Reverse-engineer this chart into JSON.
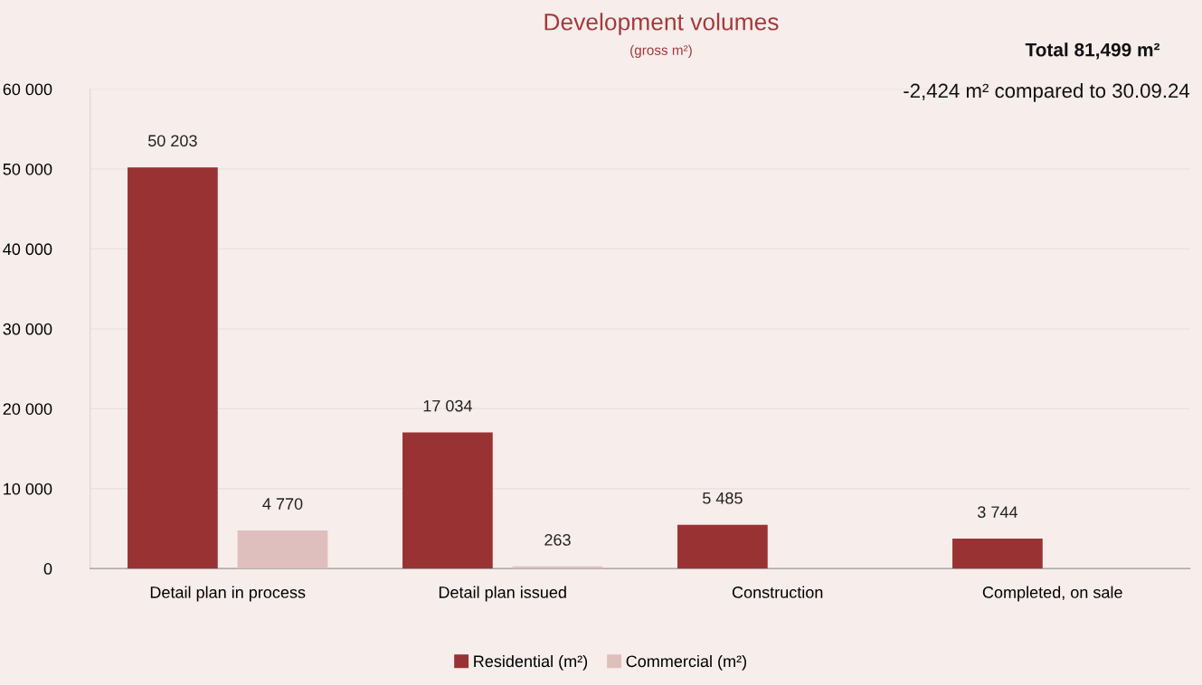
{
  "chart_data": {
    "type": "bar",
    "title": "Development volumes",
    "subtitle": "(gross m²)",
    "categories": [
      "Detail plan in process",
      "Detail plan issued",
      "Construction",
      "Completed, on sale"
    ],
    "series": [
      {
        "name": "Residential (m²)",
        "color": "#993333",
        "values": [
          50203,
          17034,
          5485,
          3744
        ],
        "value_labels": [
          "50 203",
          "17 034",
          "5 485",
          "3 744"
        ]
      },
      {
        "name": "Commercial (m²)",
        "color": "#dfbfbd",
        "values": [
          4770,
          263,
          null,
          null
        ],
        "value_labels": [
          "4 770",
          "263",
          null,
          null
        ]
      }
    ],
    "ylim": [
      0,
      60000
    ],
    "yticks": [
      {
        "value": 0,
        "label": "0"
      },
      {
        "value": 10000,
        "label": "10 000"
      },
      {
        "value": 20000,
        "label": "20 000"
      },
      {
        "value": 30000,
        "label": "30 000"
      },
      {
        "value": 40000,
        "label": "40 000"
      },
      {
        "value": 50000,
        "label": "50 000"
      },
      {
        "value": 60000,
        "label": "60 000"
      }
    ],
    "grid": "y",
    "legend": "bottom",
    "annotations": [
      "Total 81,499 m²",
      "-2,424 m² compared to 30.09.24"
    ]
  }
}
